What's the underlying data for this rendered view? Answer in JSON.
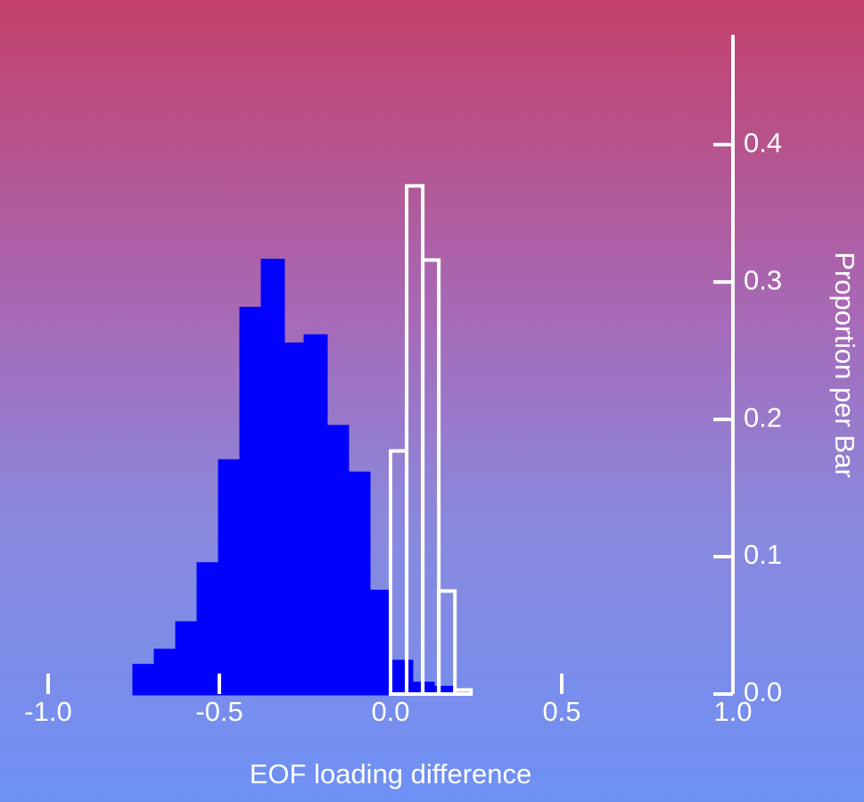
{
  "chart_data": {
    "type": "histogram",
    "x_label": "EOF loading difference",
    "y_label": "Proportion per Bar",
    "xlim": [
      -1.0,
      1.0
    ],
    "ylim": [
      0,
      0.48
    ],
    "xticks": [
      {
        "value": -1.0,
        "label": "-1.0"
      },
      {
        "value": -0.5,
        "label": "-0.5"
      },
      {
        "value": 0,
        "label": "0.0"
      },
      {
        "value": 0.5,
        "label": "0.5"
      },
      {
        "value": 1.0,
        "label": "1.0"
      }
    ],
    "yticks": [
      {
        "value": 0,
        "label": "0.0"
      },
      {
        "value": 0.1,
        "label": "0.1"
      },
      {
        "value": 0.2,
        "label": "0.2"
      },
      {
        "value": 0.3,
        "label": "0.3"
      },
      {
        "value": 0.4,
        "label": "0.4"
      }
    ],
    "series": [
      {
        "color": "#0000ff",
        "filled": true,
        "bins": [
          -1.0,
          -0.9375,
          -0.875,
          -0.8125,
          -0.75,
          -0.6875,
          -0.625,
          -0.5625,
          -0.5,
          -0.4375,
          -0.375,
          -0.3125,
          -0.25,
          -0.1875,
          -0.125,
          -0.0625,
          0.0,
          0.0625,
          0.125,
          0.1875,
          0.25,
          0.3125,
          0.375,
          0.4375,
          0.5,
          0.5625,
          0.625,
          0.6875,
          0.75,
          0.8125,
          0.875,
          0.9375,
          1.0
        ],
        "values": [
          0,
          0,
          0,
          0,
          0.021,
          0.032,
          0.052,
          0.095,
          0.17,
          0.281,
          0.316,
          0.255,
          0.261,
          0.195,
          0.161,
          0.075,
          0.024,
          0.008,
          0.005,
          0,
          0,
          0,
          0,
          0,
          0,
          0,
          0,
          0,
          0,
          0,
          0,
          0
        ]
      },
      {
        "color": "#ffffff",
        "filled": false,
        "bins": [
          0.0,
          0.047,
          0.094,
          0.141,
          0.188,
          0.235
        ],
        "values": [
          0.177,
          0.37,
          0.316,
          0.075,
          0.003
        ]
      }
    ]
  }
}
